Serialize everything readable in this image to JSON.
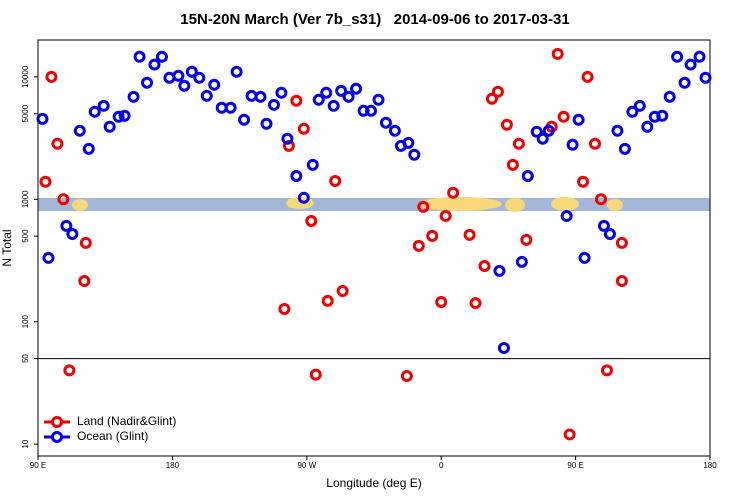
{
  "chart_data": {
    "type": "scatter",
    "title": "15N-20N March (Ver 7b_s31)   2014-09-06 to 2017-03-31",
    "x_label": "Longitude (deg E)",
    "y_label": "N Total",
    "xlim": [
      90,
      540
    ],
    "xticks": [
      {
        "value": 90,
        "label": "90 E"
      },
      180,
      {
        "value": 270,
        "label": "90 W"
      },
      {
        "value": 360,
        "label": "0"
      },
      {
        "value": 450,
        "label": "90 E"
      },
      180
    ],
    "ylim": [
      8,
      20000
    ],
    "yscale": "log",
    "yticks": [
      10,
      50,
      100,
      500,
      1000,
      5000,
      10000
    ],
    "reference_line": 50,
    "legend": "lower left",
    "series": [
      {
        "name": "Land (Nadir&Glint)",
        "color": "#ee0000",
        "x": [
          95,
          99,
          103,
          107,
          111,
          122,
          121,
          255,
          258,
          263,
          268,
          273,
          276,
          284,
          289,
          294,
          337,
          345,
          348,
          354,
          360,
          363,
          368,
          379,
          383,
          389,
          394,
          398,
          404,
          408,
          412,
          417,
          434,
          438,
          442,
          446,
          455,
          458,
          463,
          467,
          471,
          481,
          481
        ],
        "values": [
          1390,
          10000,
          2840,
          1000,
          40,
          440,
          215,
          127,
          2730,
          6380,
          3770,
          665,
          37,
          148,
          1410,
          178,
          36,
          416,
          867,
          502,
          145,
          731,
          1130,
          512,
          142,
          285,
          6620,
          7550,
          4060,
          1910,
          2840,
          466,
          3910,
          15400,
          4720,
          12,
          1390,
          10000,
          2840,
          1000,
          40,
          440,
          215
        ]
      },
      {
        "name": "Ocean (Glint)",
        "color": "#0000ee",
        "x": [
          93,
          97,
          109,
          113,
          118,
          124,
          128,
          134,
          138,
          144,
          148,
          154,
          158,
          163,
          168,
          173,
          178,
          184,
          188,
          193,
          198,
          203,
          208,
          213,
          219,
          223,
          228,
          233,
          239,
          243,
          248,
          253,
          257,
          263,
          268,
          274,
          278,
          283,
          288,
          293,
          298,
          303,
          308,
          313,
          318,
          323,
          329,
          333,
          338,
          342,
          399,
          402,
          414,
          418,
          424,
          428,
          432,
          444,
          448,
          452,
          456,
          469,
          473,
          478,
          483,
          488,
          493,
          498,
          503,
          508,
          513,
          518,
          523,
          527,
          533,
          537
        ],
        "values": [
          4540,
          332,
          607,
          521,
          3630,
          2580,
          5190,
          5800,
          3910,
          4720,
          4810,
          6870,
          14600,
          8950,
          12600,
          14600,
          9840,
          10200,
          8460,
          11000,
          9840,
          7000,
          8610,
          5590,
          5590,
          11000,
          4460,
          7000,
          6870,
          4140,
          5910,
          7410,
          3120,
          1550,
          1030,
          1910,
          6500,
          7410,
          5800,
          7690,
          6870,
          8000,
          5280,
          5280,
          6500,
          4220,
          3630,
          2730,
          2890,
          2310,
          260,
          61,
          308,
          1550,
          3560,
          3120,
          3630,
          731,
          2790,
          4460,
          332,
          607,
          521,
          3630,
          2580,
          5190,
          5800,
          3910,
          4720,
          4810,
          6870,
          14600,
          8950,
          12600,
          14600,
          9840
        ]
      }
    ]
  }
}
